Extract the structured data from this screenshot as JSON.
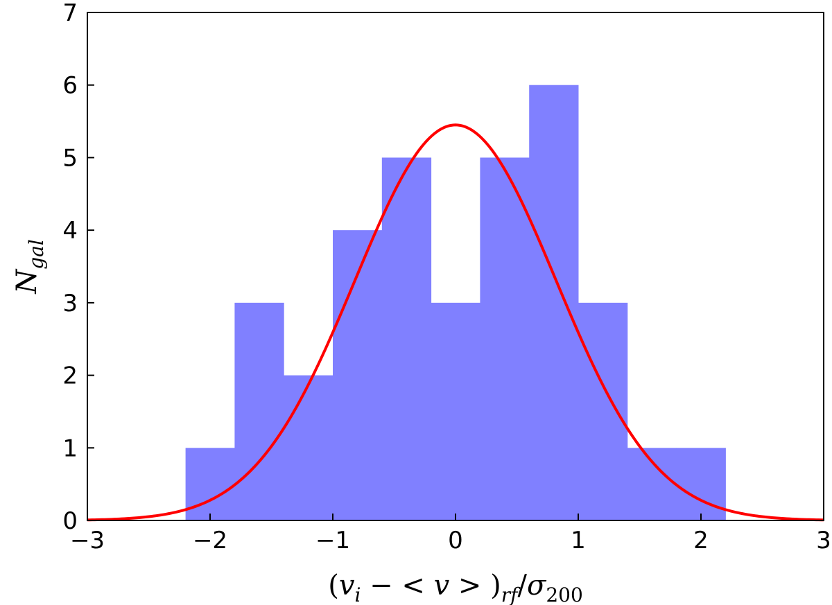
{
  "chart_data": {
    "type": "bar",
    "bins": [
      {
        "x0": -2.2,
        "x1": -1.8,
        "value": 1
      },
      {
        "x0": -1.8,
        "x1": -1.4,
        "value": 3
      },
      {
        "x0": -1.4,
        "x1": -1.0,
        "value": 2
      },
      {
        "x0": -1.0,
        "x1": -0.6,
        "value": 4
      },
      {
        "x0": -0.6,
        "x1": -0.2,
        "value": 5
      },
      {
        "x0": -0.2,
        "x1": 0.2,
        "value": 3
      },
      {
        "x0": 0.2,
        "x1": 0.6,
        "value": 5
      },
      {
        "x0": 0.6,
        "x1": 1.0,
        "value": 6
      },
      {
        "x0": 1.0,
        "x1": 1.4,
        "value": 3
      },
      {
        "x0": 1.4,
        "x1": 1.8,
        "value": 1
      },
      {
        "x0": 1.8,
        "x1": 2.2,
        "value": 1
      }
    ],
    "fit_curve": {
      "type": "gaussian",
      "amplitude": 5.45,
      "mean": 0.0,
      "sigma": 0.82
    },
    "xlim": [
      -3,
      3
    ],
    "ylim": [
      0,
      7
    ],
    "xticks": [
      "−3",
      "−2",
      "−1",
      "0",
      "1",
      "2",
      "3"
    ],
    "yticks": [
      "0",
      "1",
      "2",
      "3",
      "4",
      "5",
      "6",
      "7"
    ],
    "xlabel": "(v_i − <v>)_rf/σ_200",
    "ylabel": "N_gal",
    "grid": false,
    "colors": {
      "bars": "#8080ff",
      "curve": "#ff0000",
      "axes": "#000000"
    }
  }
}
